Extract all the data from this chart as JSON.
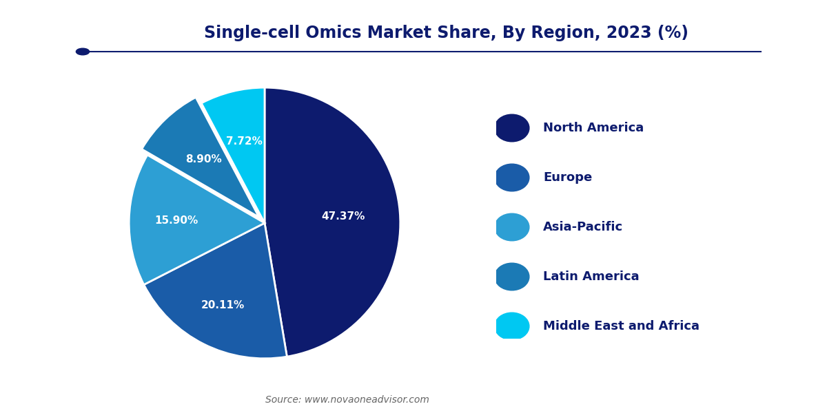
{
  "title": "Single-cell Omics Market Share, By Region, 2023 (%)",
  "labels": [
    "North America",
    "Europe",
    "Asia-Pacific",
    "Latin America",
    "Middle East and Africa"
  ],
  "values": [
    47.37,
    20.11,
    15.9,
    8.9,
    7.72
  ],
  "colors": [
    "#0d1b6e",
    "#1a5ca8",
    "#2d9fd4",
    "#1b7ab5",
    "#00c8f2"
  ],
  "pct_labels": [
    "47.37%",
    "20.11%",
    "15.90%",
    "8.90%",
    "7.72%"
  ],
  "explode": [
    0,
    0,
    0.0,
    0.06,
    0
  ],
  "source_text": "Source: www.novaoneadvisor.com",
  "title_color": "#0d1b6e",
  "label_text_color": "#ffffff",
  "legend_text_color": "#0d1b6e",
  "background_color": "#ffffff",
  "startangle": 90,
  "logo_bg_color": "#1d4f9f",
  "line_color": "#0d1b6e"
}
